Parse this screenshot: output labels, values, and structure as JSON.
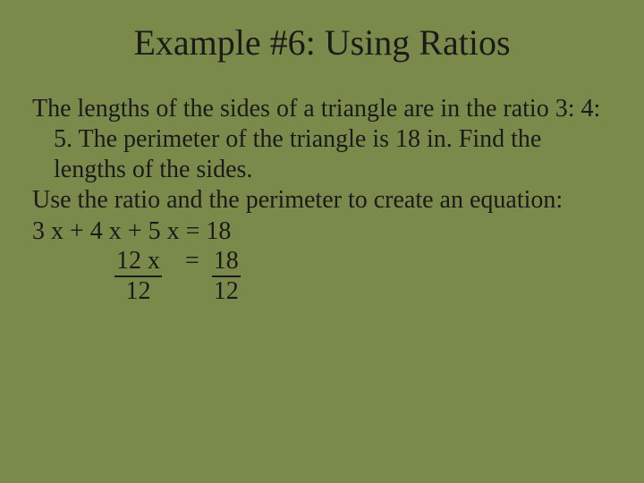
{
  "background_color": "#7a8a4a",
  "text_color": "#1a1a1a",
  "font_family": "Times New Roman",
  "title": "Example #6: Using Ratios",
  "title_fontsize": 40,
  "body_fontsize": 28,
  "paragraph1": "The lengths of the sides of a triangle are in the ratio 3: 4: 5. The perimeter of the triangle is 18 in. Find the lengths of the sides.",
  "paragraph2": "Use the ratio and the perimeter to create an equation:",
  "equation_line": "3 x + 4 x + 5 x = 18",
  "fraction_left_num": "12 x",
  "fraction_left_den": "12",
  "eq_sign": "=",
  "fraction_right_num": "18",
  "fraction_right_den": "12"
}
